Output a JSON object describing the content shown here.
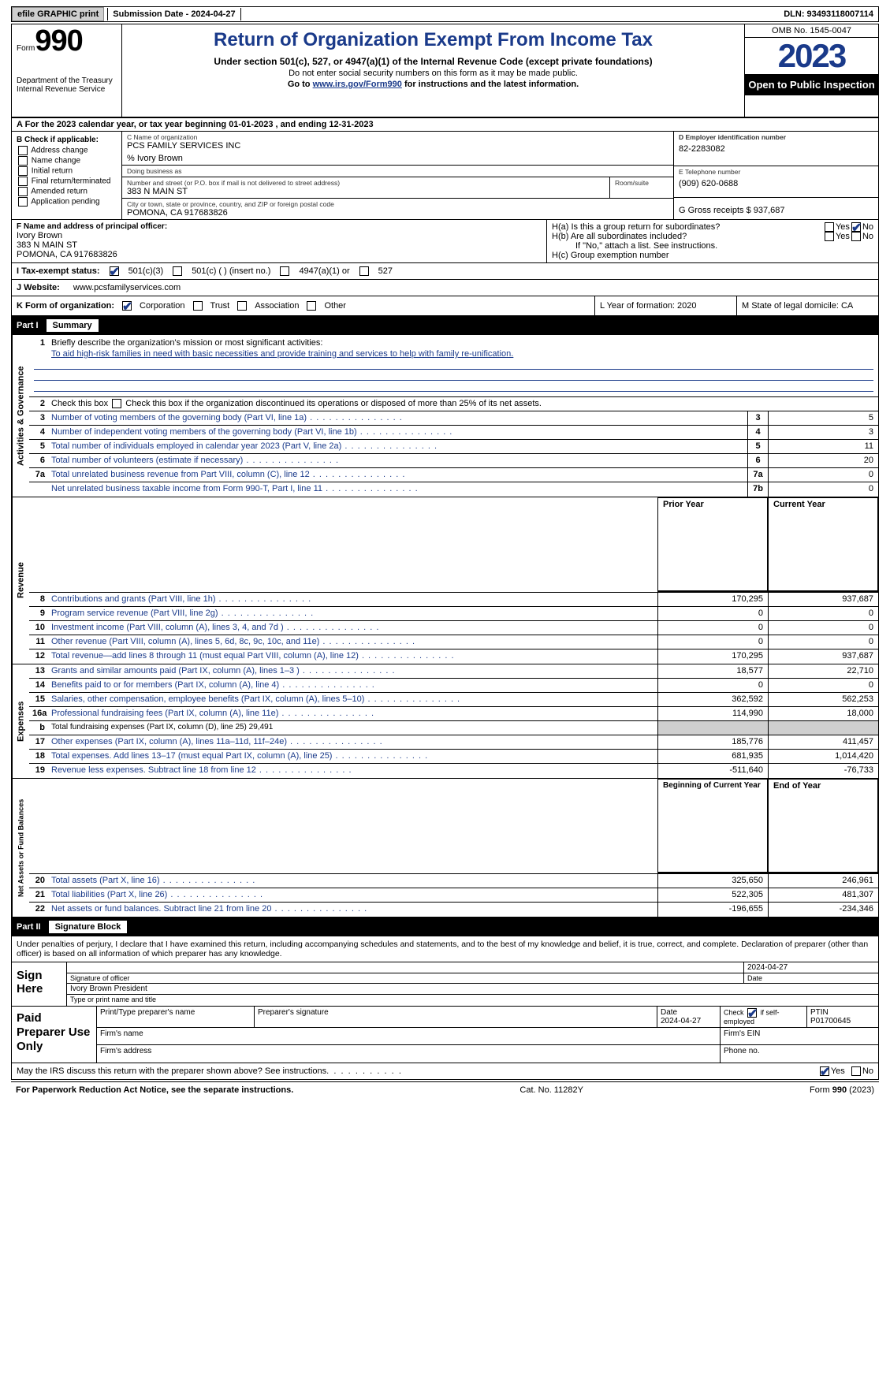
{
  "topbar": {
    "efile": "efile GRAPHIC print",
    "submission_label": "Submission Date - 2024-04-27",
    "dln_label": "DLN: 93493118007114"
  },
  "header": {
    "form_word": "Form",
    "form_num": "990",
    "dept1": "Department of the Treasury",
    "dept2": "Internal Revenue Service",
    "title": "Return of Organization Exempt From Income Tax",
    "sub1": "Under section 501(c), 527, or 4947(a)(1) of the Internal Revenue Code (except private foundations)",
    "sub2": "Do not enter social security numbers on this form as it may be made public.",
    "sub3_pre": "Go to ",
    "sub3_link": "www.irs.gov/Form990",
    "sub3_post": " for instructions and the latest information.",
    "omb": "OMB No. 1545-0047",
    "year": "2023",
    "open": "Open to Public Inspection"
  },
  "rowA": "A   For the 2023 calendar year, or tax year beginning 01-01-2023    , and ending 12-31-2023",
  "colB": {
    "title": "B Check if applicable:",
    "items": [
      "Address change",
      "Name change",
      "Initial return",
      "Final return/terminated",
      "Amended return",
      "Application pending"
    ]
  },
  "colC": {
    "name_lbl": "C Name of organization",
    "name": "PCS FAMILY SERVICES INC",
    "care": "% Ivory Brown",
    "dba_lbl": "Doing business as",
    "addr_lbl": "Number and street (or P.O. box if mail is not delivered to street address)",
    "room_lbl": "Room/suite",
    "addr": "383 N MAIN ST",
    "city_lbl": "City or town, state or province, country, and ZIP or foreign postal code",
    "city": "POMONA, CA   917683826"
  },
  "colD": {
    "ein_lbl": "D Employer identification number",
    "ein": "82-2283082",
    "tel_lbl": "E Telephone number",
    "tel": "(909) 620-0688",
    "gross_lbl": "G Gross receipts $ 937,687"
  },
  "rowF": {
    "lbl": "F  Name and address of principal officer:",
    "l1": "Ivory Brown",
    "l2": "383 N MAIN ST",
    "l3": "POMONA, CA   917683826"
  },
  "rowH": {
    "ha": "H(a)  Is this a group return for subordinates?",
    "hb": "H(b)  Are all subordinates included?",
    "hb2": "If \"No,\" attach a list. See instructions.",
    "hc": "H(c)  Group exemption number",
    "yes": "Yes",
    "no": "No"
  },
  "rowI": {
    "lbl": "I    Tax-exempt status:",
    "o1": "501(c)(3)",
    "o2": "501(c) (  ) (insert no.)",
    "o3": "4947(a)(1) or",
    "o4": "527"
  },
  "rowJ": {
    "lbl": "J   Website:",
    "val": "www.pcsfamilyservices.com"
  },
  "rowK": {
    "lbl": "K Form of organization:",
    "o1": "Corporation",
    "o2": "Trust",
    "o3": "Association",
    "o4": "Other",
    "l_lbl": "L Year of formation: 2020",
    "m_lbl": "M State of legal domicile: CA"
  },
  "part1": {
    "num": "Part I",
    "title": "Summary"
  },
  "summary": {
    "s1_lbl": "Briefly describe the organization's mission or most significant activities:",
    "s1_val": "To aid high-risk families in need with basic necessities and provide training and services to help with family re-unification.",
    "s2": "Check this box       if the organization discontinued its operations or disposed of more than 25% of its net assets.",
    "lines_gov": [
      {
        "n": "3",
        "t": "Number of voting members of the governing body (Part VI, line 1a)",
        "nb": "3",
        "v": "5"
      },
      {
        "n": "4",
        "t": "Number of independent voting members of the governing body (Part VI, line 1b)",
        "nb": "4",
        "v": "3"
      },
      {
        "n": "5",
        "t": "Total number of individuals employed in calendar year 2023 (Part V, line 2a)",
        "nb": "5",
        "v": "11"
      },
      {
        "n": "6",
        "t": "Total number of volunteers (estimate if necessary)",
        "nb": "6",
        "v": "20"
      },
      {
        "n": "7a",
        "t": "Total unrelated business revenue from Part VIII, column (C), line 12",
        "nb": "7a",
        "v": "0"
      },
      {
        "n": "",
        "t": "Net unrelated business taxable income from Form 990-T, Part I, line 11",
        "nb": "7b",
        "v": "0"
      }
    ],
    "hdr_prior": "Prior Year",
    "hdr_curr": "Current Year",
    "rev": [
      {
        "n": "8",
        "t": "Contributions and grants (Part VIII, line 1h)",
        "p": "170,295",
        "c": "937,687"
      },
      {
        "n": "9",
        "t": "Program service revenue (Part VIII, line 2g)",
        "p": "0",
        "c": "0"
      },
      {
        "n": "10",
        "t": "Investment income (Part VIII, column (A), lines 3, 4, and 7d )",
        "p": "0",
        "c": "0"
      },
      {
        "n": "11",
        "t": "Other revenue (Part VIII, column (A), lines 5, 6d, 8c, 9c, 10c, and 11e)",
        "p": "0",
        "c": "0"
      },
      {
        "n": "12",
        "t": "Total revenue—add lines 8 through 11 (must equal Part VIII, column (A), line 12)",
        "p": "170,295",
        "c": "937,687"
      }
    ],
    "exp": [
      {
        "n": "13",
        "t": "Grants and similar amounts paid (Part IX, column (A), lines 1–3 )",
        "p": "18,577",
        "c": "22,710"
      },
      {
        "n": "14",
        "t": "Benefits paid to or for members (Part IX, column (A), line 4)",
        "p": "0",
        "c": "0"
      },
      {
        "n": "15",
        "t": "Salaries, other compensation, employee benefits (Part IX, column (A), lines 5–10)",
        "p": "362,592",
        "c": "562,253"
      },
      {
        "n": "16a",
        "t": "Professional fundraising fees (Part IX, column (A), line 11e)",
        "p": "114,990",
        "c": "18,000"
      },
      {
        "n": "b",
        "t": "Total fundraising expenses (Part IX, column (D), line 25) 29,491",
        "p": "grey",
        "c": "grey"
      },
      {
        "n": "17",
        "t": "Other expenses (Part IX, column (A), lines 11a–11d, 11f–24e)",
        "p": "185,776",
        "c": "411,457"
      },
      {
        "n": "18",
        "t": "Total expenses. Add lines 13–17 (must equal Part IX, column (A), line 25)",
        "p": "681,935",
        "c": "1,014,420"
      },
      {
        "n": "19",
        "t": "Revenue less expenses. Subtract line 18 from line 12",
        "p": "-511,640",
        "c": "-76,733"
      }
    ],
    "hdr_beg": "Beginning of Current Year",
    "hdr_end": "End of Year",
    "net": [
      {
        "n": "20",
        "t": "Total assets (Part X, line 16)",
        "p": "325,650",
        "c": "246,961"
      },
      {
        "n": "21",
        "t": "Total liabilities (Part X, line 26)",
        "p": "522,305",
        "c": "481,307"
      },
      {
        "n": "22",
        "t": "Net assets or fund balances. Subtract line 21 from line 20",
        "p": "-196,655",
        "c": "-234,346"
      }
    ],
    "vert_gov": "Activities & Governance",
    "vert_rev": "Revenue",
    "vert_exp": "Expenses",
    "vert_net": "Net Assets or Fund Balances"
  },
  "part2": {
    "num": "Part II",
    "title": "Signature Block"
  },
  "sig": {
    "intro": "Under penalties of perjury, I declare that I have examined this return, including accompanying schedules and statements, and to the best of my knowledge and belief, it is true, correct, and complete. Declaration of preparer (other than officer) is based on all information of which preparer has any knowledge.",
    "sign_here": "Sign Here",
    "sig_officer": "Signature of officer",
    "date": "Date",
    "date_val": "2024-04-27",
    "name_title": "Ivory Brown  President",
    "type_lbl": "Type or print name and title"
  },
  "prep": {
    "title": "Paid Preparer Use Only",
    "h1": "Print/Type preparer's name",
    "h2": "Preparer's signature",
    "h3": "Date",
    "h3v": "2024-04-27",
    "h4": "Check         if self-employed",
    "h5": "PTIN",
    "h5v": "P01700645",
    "firm_name": "Firm's name",
    "firm_ein": "Firm's EIN",
    "firm_addr": "Firm's address",
    "firm_phone": "Phone no."
  },
  "bottom": {
    "q": "May the IRS discuss this return with the preparer shown above? See instructions.",
    "yes": "Yes",
    "no": "No"
  },
  "footer": {
    "l": "For Paperwork Reduction Act Notice, see the separate instructions.",
    "m": "Cat. No. 11282Y",
    "r": "Form 990 (2023)"
  }
}
